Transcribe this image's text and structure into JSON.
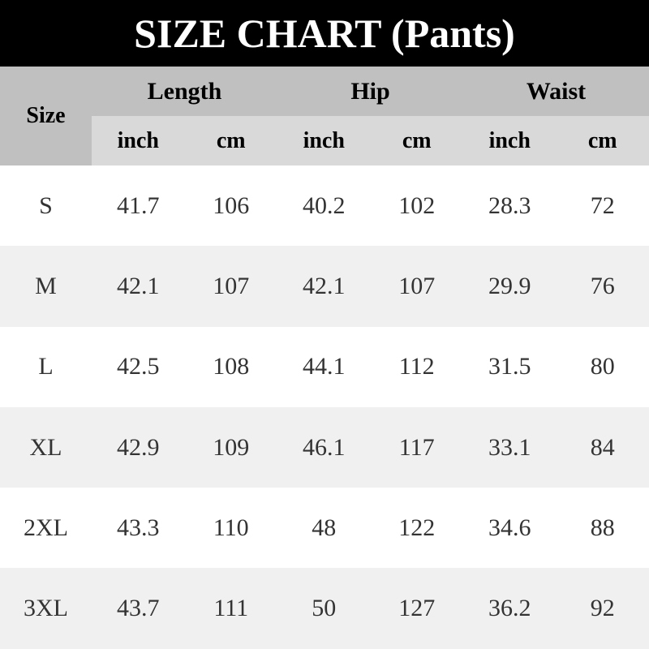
{
  "title": "SIZE CHART (Pants)",
  "header": {
    "size": "Size",
    "groups": [
      "Length",
      "Hip",
      "Waist"
    ],
    "units": [
      "inch",
      "cm",
      "inch",
      "cm",
      "inch",
      "cm"
    ]
  },
  "rows": [
    [
      "S",
      "41.7",
      "106",
      "40.2",
      "102",
      "28.3",
      "72"
    ],
    [
      "M",
      "42.1",
      "107",
      "42.1",
      "107",
      "29.9",
      "76"
    ],
    [
      "L",
      "42.5",
      "108",
      "44.1",
      "112",
      "31.5",
      "80"
    ],
    [
      "XL",
      "42.9",
      "109",
      "46.1",
      "117",
      "33.1",
      "84"
    ],
    [
      "2XL",
      "43.3",
      "110",
      "48",
      "122",
      "34.6",
      "88"
    ],
    [
      "3XL",
      "43.7",
      "111",
      "50",
      "127",
      "36.2",
      "92"
    ]
  ]
}
